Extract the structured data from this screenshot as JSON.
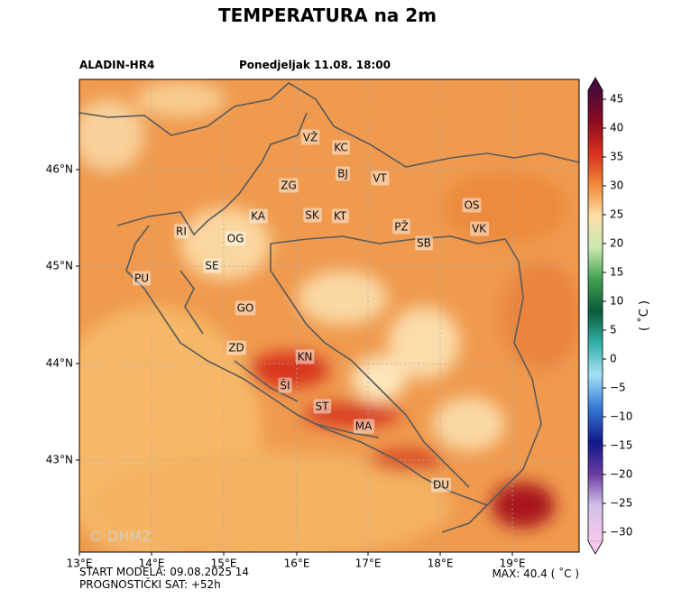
{
  "header": {
    "title": "TEMPERATURA na 2m",
    "model": "ALADIN-HR4",
    "valid_time": "Ponedjeljak 11.08. 18:00"
  },
  "map": {
    "lon_labels": [
      "13°E",
      "14°E",
      "15°E",
      "16°E",
      "17°E",
      "18°E",
      "19°E"
    ],
    "lat_labels": [
      "46°N",
      "45°N",
      "44°N",
      "43°N"
    ],
    "cities": [
      "VŽ",
      "KC",
      "BJ",
      "VT",
      "ZG",
      "OS",
      "KA",
      "SK",
      "KT",
      "PŽ",
      "VK",
      "RI",
      "OG",
      "SB",
      "SE",
      "PU",
      "GO",
      "ZD",
      "KN",
      "ŠI",
      "ST",
      "MA",
      "DU"
    ],
    "watermark": "© DHMZ"
  },
  "colorbar": {
    "ticks": [
      "45",
      "40",
      "35",
      "30",
      "25",
      "20",
      "15",
      "10",
      "5",
      "0",
      "−5",
      "−10",
      "−15",
      "−20",
      "−25",
      "−30"
    ],
    "unit": "( ˚C )"
  },
  "footer": {
    "start": "START MODELA: 09.08.2025 14",
    "forecast_hour": "PROGNOSTIČKI SAT: +52h",
    "max": "MAX: 40.4 ( ˚C )"
  }
}
